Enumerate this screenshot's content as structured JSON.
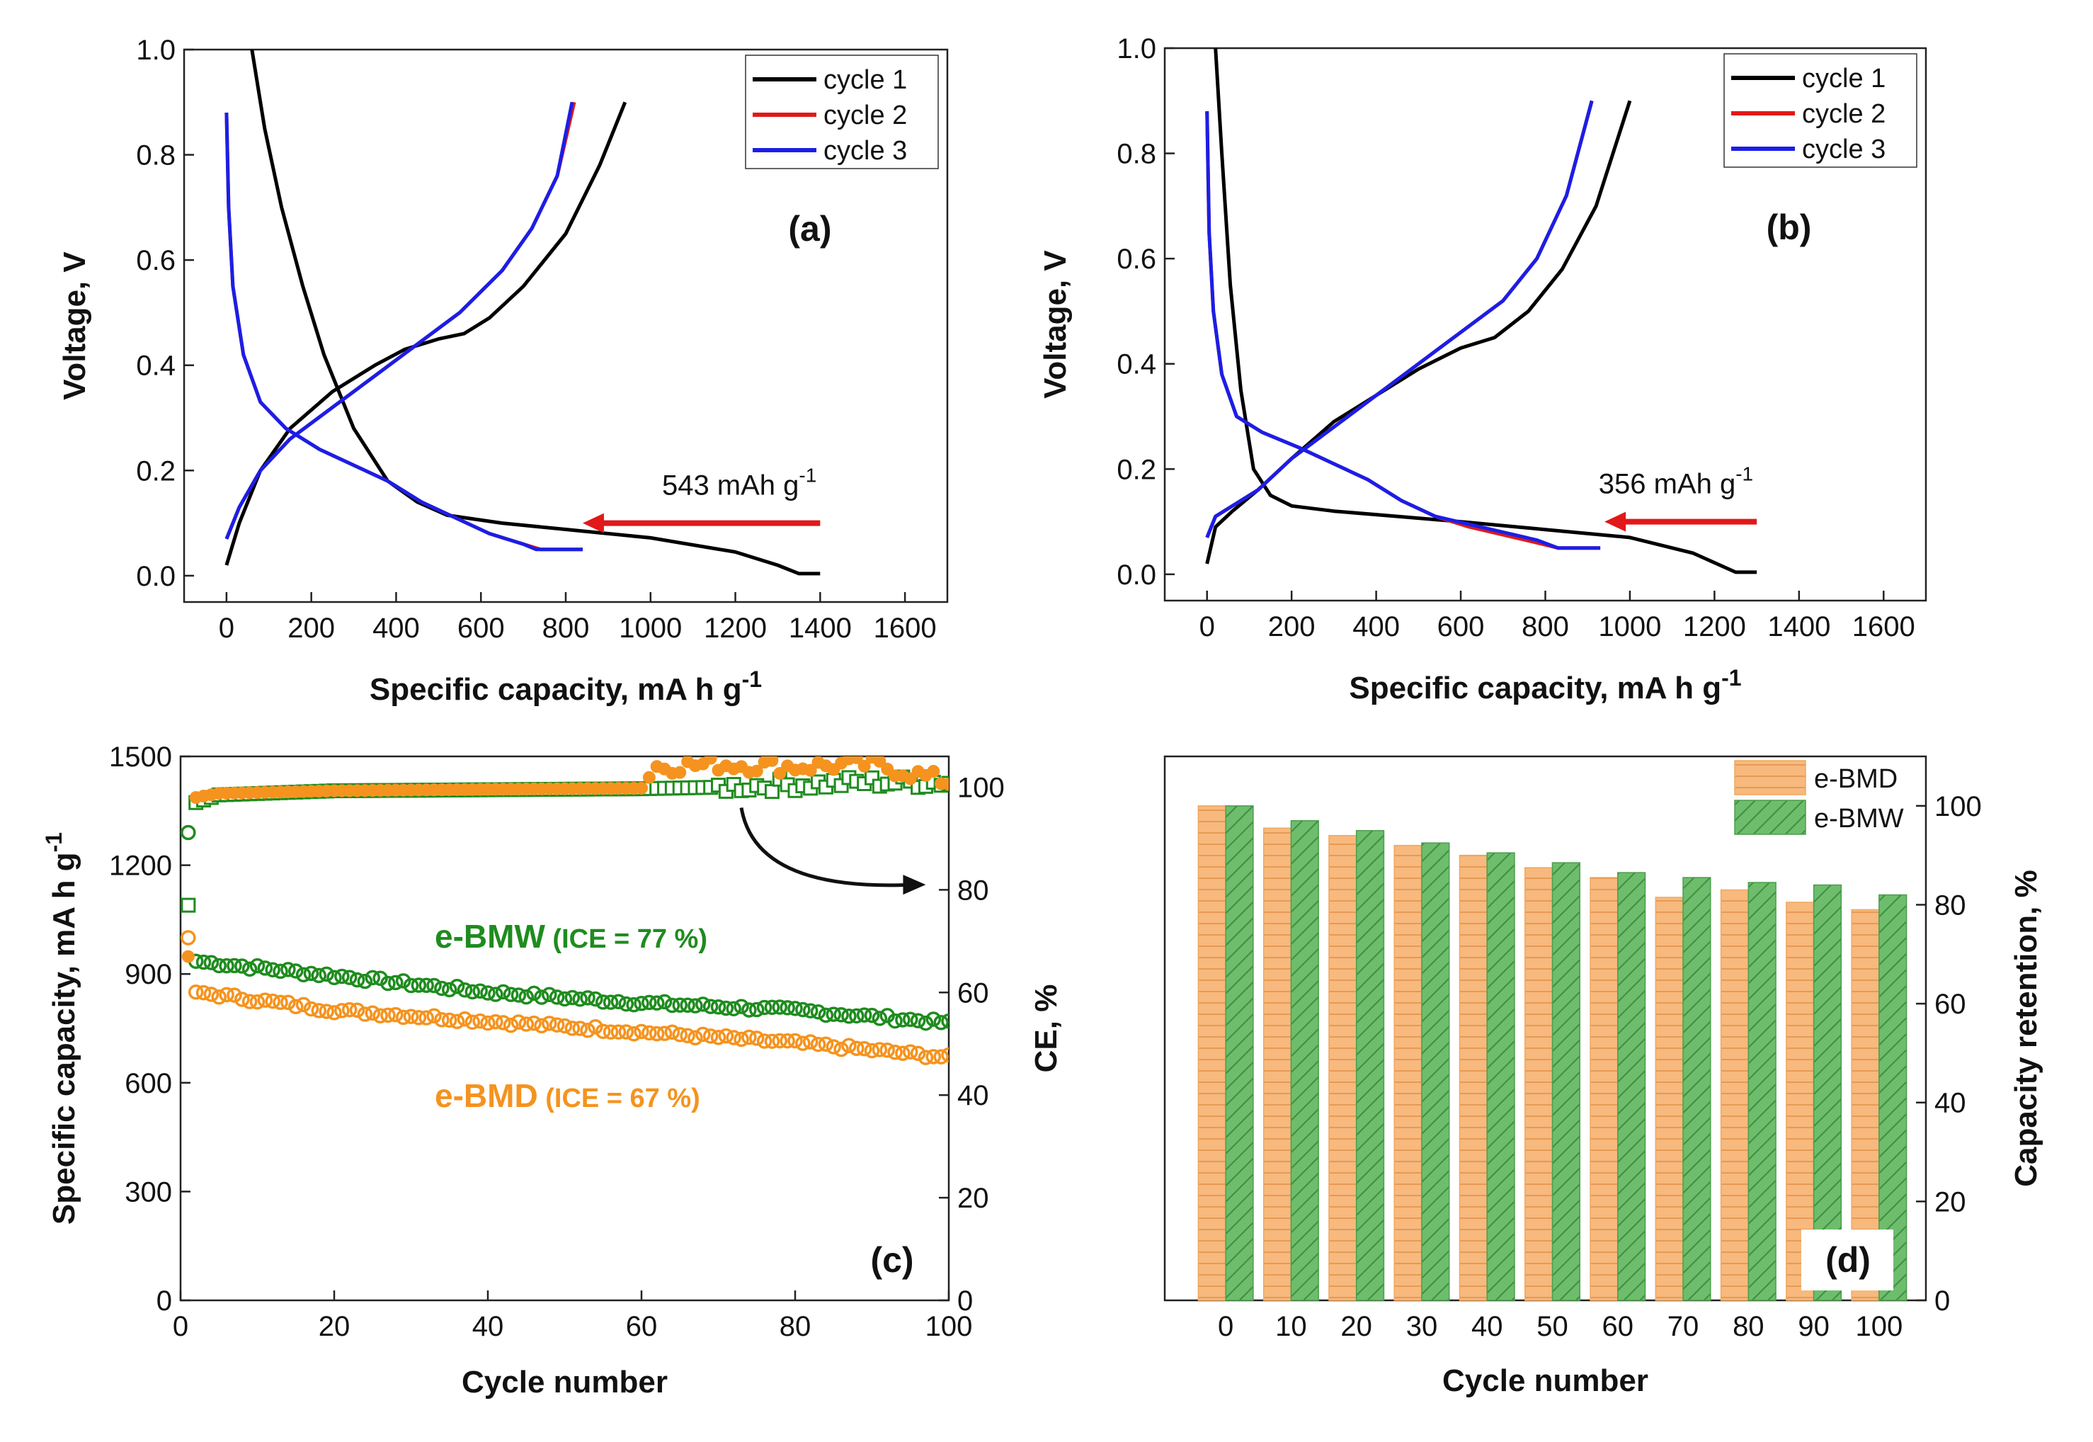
{
  "chart_data": [
    {
      "id": "a",
      "type": "line",
      "panel_label": "(a)",
      "xlabel": "Specific capacity, mA h g",
      "xlabel_sup": "-1",
      "ylabel": "Voltage, V",
      "xlim": [
        -100,
        1700
      ],
      "ylim": [
        -0.05,
        1.0
      ],
      "xticks": [
        0,
        200,
        400,
        600,
        800,
        1000,
        1200,
        1400,
        1600
      ],
      "yticks": [
        0.0,
        0.2,
        0.4,
        0.6,
        0.8,
        1.0
      ],
      "annotation": {
        "text": "543 mAh g",
        "sup": "-1",
        "arrow_from": [
          1400,
          0.1
        ],
        "arrow_to": [
          840,
          0.1
        ],
        "color": "#e11919"
      },
      "legend": {
        "position": "top-right",
        "entries": [
          "cycle 1",
          "cycle 2",
          "cycle 3"
        ]
      },
      "series": [
        {
          "name": "cycle 1 discharge",
          "legend": "cycle 1",
          "color": "#000000",
          "x": [
            60,
            90,
            130,
            180,
            230,
            300,
            380,
            450,
            520,
            650,
            800,
            1000,
            1200,
            1300,
            1350,
            1400
          ],
          "y": [
            1.0,
            0.85,
            0.7,
            0.55,
            0.42,
            0.28,
            0.18,
            0.14,
            0.115,
            0.1,
            0.088,
            0.072,
            0.045,
            0.02,
            0.004,
            0.004
          ]
        },
        {
          "name": "cycle 1 charge",
          "legend": "cycle 1",
          "color": "#000000",
          "x": [
            0,
            30,
            80,
            150,
            250,
            350,
            420,
            500,
            560,
            620,
            700,
            800,
            880,
            940
          ],
          "y": [
            0.02,
            0.1,
            0.2,
            0.28,
            0.35,
            0.4,
            0.43,
            0.45,
            0.46,
            0.49,
            0.55,
            0.65,
            0.78,
            0.9
          ]
        },
        {
          "name": "cycle 2 discharge",
          "legend": "cycle 2",
          "color": "#e11919",
          "x": [
            0,
            5,
            15,
            40,
            80,
            140,
            220,
            300,
            380,
            460,
            540,
            620,
            700,
            740,
            840
          ],
          "y": [
            0.88,
            0.7,
            0.55,
            0.42,
            0.33,
            0.28,
            0.24,
            0.21,
            0.18,
            0.14,
            0.11,
            0.08,
            0.06,
            0.05,
            0.05
          ]
        },
        {
          "name": "cycle 2 charge",
          "legend": "cycle 2",
          "color": "#e11919",
          "x": [
            0,
            30,
            80,
            150,
            250,
            350,
            450,
            550,
            650,
            720,
            780,
            820
          ],
          "y": [
            0.07,
            0.13,
            0.2,
            0.26,
            0.32,
            0.38,
            0.44,
            0.5,
            0.58,
            0.66,
            0.76,
            0.9
          ]
        },
        {
          "name": "cycle 3 discharge",
          "legend": "cycle 3",
          "color": "#1b1ee6",
          "x": [
            0,
            5,
            15,
            40,
            80,
            140,
            220,
            300,
            380,
            460,
            540,
            620,
            700,
            730,
            840
          ],
          "y": [
            0.88,
            0.7,
            0.55,
            0.42,
            0.33,
            0.28,
            0.24,
            0.21,
            0.18,
            0.14,
            0.11,
            0.08,
            0.06,
            0.05,
            0.05
          ]
        },
        {
          "name": "cycle 3 charge",
          "legend": "cycle 3",
          "color": "#1b1ee6",
          "x": [
            0,
            30,
            80,
            150,
            250,
            350,
            450,
            550,
            650,
            720,
            780,
            815
          ],
          "y": [
            0.07,
            0.13,
            0.2,
            0.26,
            0.32,
            0.38,
            0.44,
            0.5,
            0.58,
            0.66,
            0.76,
            0.9
          ]
        }
      ]
    },
    {
      "id": "b",
      "type": "line",
      "panel_label": "(b)",
      "xlabel": "Specific capacity, mA h g",
      "xlabel_sup": "-1",
      "ylabel": "Voltage, V",
      "xlim": [
        -100,
        1700
      ],
      "ylim": [
        -0.05,
        1.0
      ],
      "xticks": [
        0,
        200,
        400,
        600,
        800,
        1000,
        1200,
        1400,
        1600
      ],
      "yticks": [
        0.0,
        0.2,
        0.4,
        0.6,
        0.8,
        1.0
      ],
      "annotation": {
        "text": "356 mAh g",
        "sup": "-1",
        "arrow_from": [
          1300,
          0.1
        ],
        "arrow_to": [
          940,
          0.1
        ],
        "color": "#e11919"
      },
      "legend": {
        "position": "top-right",
        "entries": [
          "cycle 1",
          "cycle 2",
          "cycle 3"
        ]
      },
      "series": [
        {
          "name": "cycle 1 discharge",
          "legend": "cycle 1",
          "color": "#000000",
          "x": [
            20,
            35,
            55,
            80,
            110,
            150,
            200,
            300,
            450,
            600,
            800,
            1000,
            1150,
            1250,
            1300
          ],
          "y": [
            1.0,
            0.8,
            0.55,
            0.35,
            0.2,
            0.15,
            0.13,
            0.12,
            0.11,
            0.1,
            0.085,
            0.07,
            0.04,
            0.004,
            0.004
          ]
        },
        {
          "name": "cycle 1 charge",
          "legend": "cycle 1",
          "color": "#000000",
          "x": [
            0,
            20,
            60,
            120,
            200,
            300,
            400,
            500,
            600,
            680,
            760,
            840,
            920,
            1000
          ],
          "y": [
            0.02,
            0.09,
            0.12,
            0.16,
            0.22,
            0.29,
            0.34,
            0.39,
            0.43,
            0.45,
            0.5,
            0.58,
            0.7,
            0.9
          ]
        },
        {
          "name": "cycle 2 discharge",
          "legend": "cycle 2",
          "color": "#e11919",
          "x": [
            0,
            5,
            15,
            35,
            70,
            130,
            220,
            300,
            380,
            460,
            540,
            620,
            700,
            780,
            830,
            930
          ],
          "y": [
            0.88,
            0.65,
            0.5,
            0.38,
            0.3,
            0.27,
            0.24,
            0.21,
            0.18,
            0.14,
            0.11,
            0.09,
            0.075,
            0.06,
            0.05,
            0.05
          ]
        },
        {
          "name": "cycle 2 charge",
          "legend": "cycle 2",
          "color": "#e11919",
          "x": [
            0,
            20,
            60,
            120,
            200,
            300,
            400,
            500,
            600,
            700,
            780,
            850,
            910
          ],
          "y": [
            0.07,
            0.11,
            0.13,
            0.16,
            0.22,
            0.28,
            0.34,
            0.4,
            0.46,
            0.52,
            0.6,
            0.72,
            0.9
          ]
        },
        {
          "name": "cycle 3 discharge",
          "legend": "cycle 3",
          "color": "#1b1ee6",
          "x": [
            0,
            5,
            15,
            35,
            70,
            130,
            220,
            300,
            380,
            460,
            540,
            620,
            700,
            780,
            830,
            930
          ],
          "y": [
            0.88,
            0.65,
            0.5,
            0.38,
            0.3,
            0.27,
            0.24,
            0.21,
            0.18,
            0.14,
            0.11,
            0.095,
            0.08,
            0.065,
            0.05,
            0.05
          ]
        },
        {
          "name": "cycle 3 charge",
          "legend": "cycle 3",
          "color": "#1b1ee6",
          "x": [
            0,
            20,
            60,
            120,
            200,
            300,
            400,
            500,
            600,
            700,
            780,
            850,
            910
          ],
          "y": [
            0.07,
            0.11,
            0.13,
            0.16,
            0.22,
            0.28,
            0.34,
            0.4,
            0.46,
            0.52,
            0.6,
            0.72,
            0.9
          ]
        }
      ]
    },
    {
      "id": "c",
      "type": "scatter",
      "panel_label": "(c)",
      "xlabel": "Cycle number",
      "ylabel": "Specific capacity, mA h g",
      "ylabel_sup": "-1",
      "y2label": "CE, %",
      "xlim": [
        0,
        100
      ],
      "ylim": [
        0,
        1500
      ],
      "y2lim": [
        0,
        106
      ],
      "xticks": [
        0,
        20,
        40,
        60,
        80,
        100
      ],
      "yticks": [
        0,
        300,
        600,
        900,
        1200,
        1500
      ],
      "y2ticks": [
        0,
        20,
        40,
        60,
        80,
        100
      ],
      "labels": [
        {
          "series": "e-BMW",
          "text": "e-BMW",
          "extra": " (ICE = 77 %)",
          "color": "#1e8c1e"
        },
        {
          "series": "e-BMD",
          "text": "e-BMD",
          "extra": " (ICE = 67 %)",
          "color": "#f5931e"
        }
      ],
      "curved_arrow": {
        "from": [
          73,
          96
        ],
        "to": [
          97,
          81
        ],
        "axis": "y2"
      },
      "series": [
        {
          "name": "e-BMW",
          "kind": "capacity",
          "color": "#1e8c1e",
          "x": [
            1,
            2,
            20,
            40,
            60,
            80,
            100
          ],
          "y": [
            1290,
            935,
            895,
            850,
            820,
            800,
            765
          ]
        },
        {
          "name": "e-BMD",
          "kind": "capacity",
          "color": "#f5931e",
          "x": [
            1,
            2,
            20,
            40,
            60,
            80,
            100
          ],
          "y": [
            1000,
            850,
            800,
            770,
            740,
            710,
            670
          ]
        },
        {
          "name": "e-BMW CE",
          "kind": "ce",
          "color": "#1e8c1e",
          "x": [
            1,
            2,
            5,
            20,
            40,
            60,
            70,
            80,
            90,
            100
          ],
          "y": [
            77,
            97,
            98.5,
            99.3,
            99.5,
            99.7,
            100,
            100.5,
            101,
            101
          ]
        },
        {
          "name": "e-BMD CE",
          "kind": "ce",
          "color": "#f5931e",
          "x": [
            1,
            2,
            5,
            20,
            40,
            60,
            62,
            70,
            80,
            90,
            100
          ],
          "y": [
            67,
            98,
            98.8,
            99.3,
            99.6,
            99.8,
            104,
            104.5,
            104,
            104.5,
            101
          ]
        }
      ]
    },
    {
      "id": "d",
      "type": "bar",
      "panel_label": "(d)",
      "xlabel": "Cycle number",
      "y2label": "Capacity retention, %",
      "categories": [
        "0",
        "10",
        "20",
        "30",
        "40",
        "50",
        "60",
        "70",
        "80",
        "90",
        "100"
      ],
      "ylim": [
        0,
        110
      ],
      "y2ticks": [
        0,
        20,
        40,
        60,
        80,
        100
      ],
      "legend": {
        "position": "top-right",
        "entries": [
          "e-BMD",
          "e-BMW"
        ]
      },
      "series": [
        {
          "name": "e-BMD",
          "color": "#f7b97d",
          "hatch": "horizontal",
          "values": [
            100,
            95.5,
            94,
            92,
            90,
            87.5,
            85.5,
            81.5,
            83,
            80.5,
            79
          ]
        },
        {
          "name": "e-BMW",
          "color": "#6dbd6d",
          "hatch": "diagonal",
          "values": [
            100,
            97,
            95,
            92.5,
            90.5,
            88.5,
            86.5,
            85.5,
            84.5,
            84,
            82
          ]
        }
      ]
    }
  ]
}
